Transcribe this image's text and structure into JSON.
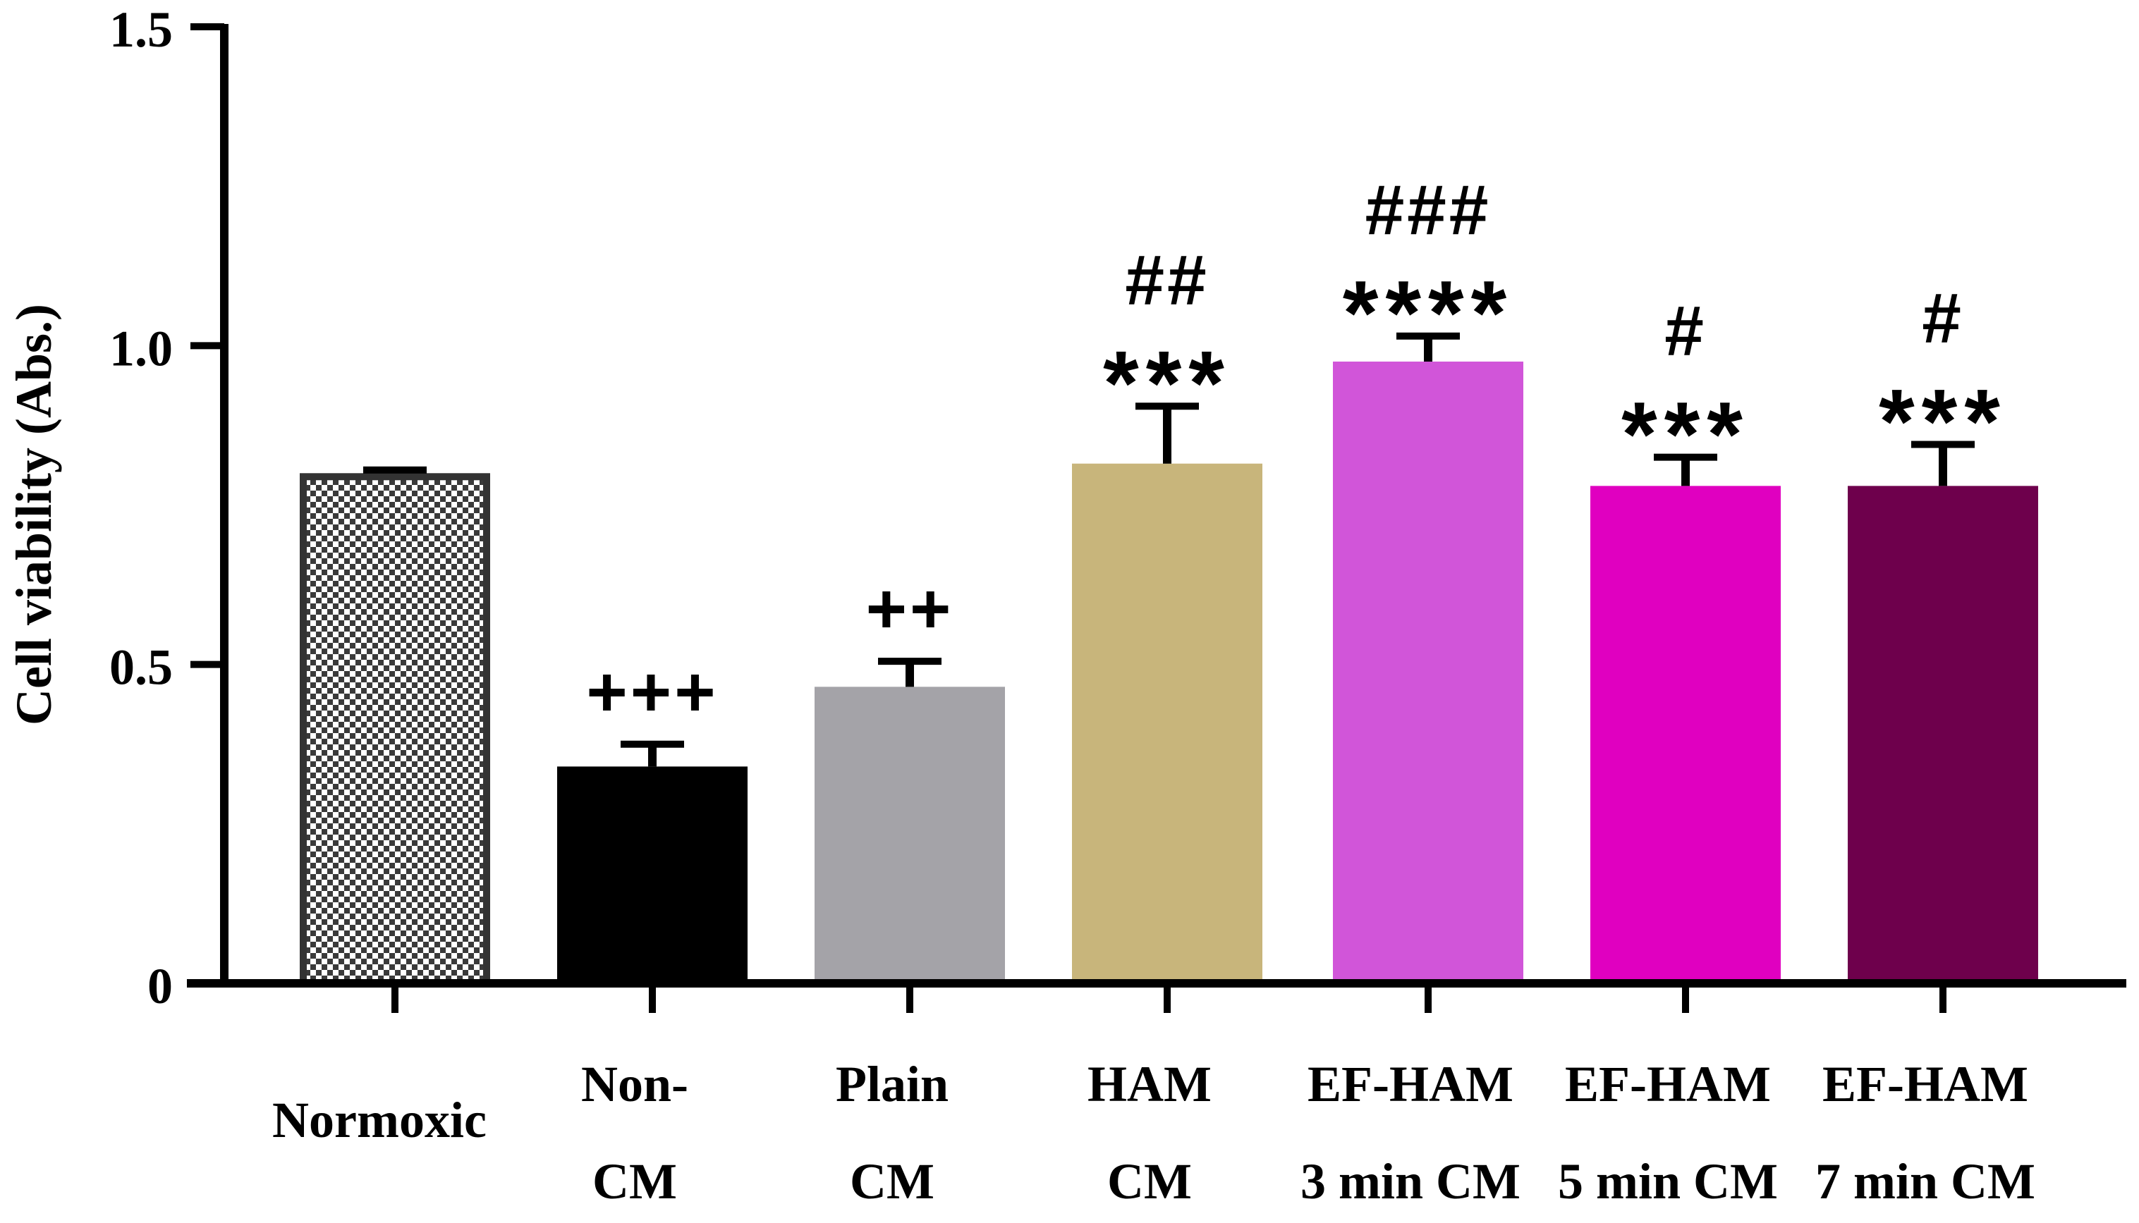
{
  "chart_data": {
    "type": "bar",
    "title": "",
    "xlabel": "",
    "ylabel": "Cell viability (Abs.)",
    "ylim": [
      0,
      1.5
    ],
    "yticks": [
      "0",
      "0.5",
      "1.0",
      "1.5"
    ],
    "ytick_values": [
      0,
      0.5,
      1.0,
      1.5
    ],
    "grid": false,
    "categories": [
      {
        "line1": "Normoxic",
        "line2": ""
      },
      {
        "line1": "Non-",
        "line2": "CM"
      },
      {
        "line1": "Plain",
        "line2": "CM"
      },
      {
        "line1": "HAM",
        "line2": "CM"
      },
      {
        "line1": "EF-HAM",
        "line2": "3 min CM"
      },
      {
        "line1": "EF-HAM",
        "line2": "5 min CM"
      },
      {
        "line1": "EF-HAM",
        "line2": "7 min CM"
      }
    ],
    "values": [
      0.8,
      0.34,
      0.465,
      0.815,
      0.975,
      0.78,
      0.78
    ],
    "errors": [
      0.005,
      0.035,
      0.04,
      0.09,
      0.04,
      0.045,
      0.065
    ],
    "colors": [
      "checker",
      "#000000",
      "#a4a3a8",
      "#c8b57b",
      "#d155d9",
      "#e000c0",
      "#6e004c"
    ],
    "annotations": [
      {
        "lines": []
      },
      {
        "lines": [
          "+++"
        ]
      },
      {
        "lines": [
          "++"
        ]
      },
      {
        "lines": [
          "##",
          "***"
        ]
      },
      {
        "lines": [
          "###",
          "****"
        ]
      },
      {
        "lines": [
          "#",
          "***"
        ]
      },
      {
        "lines": [
          "#",
          "***"
        ]
      }
    ]
  }
}
